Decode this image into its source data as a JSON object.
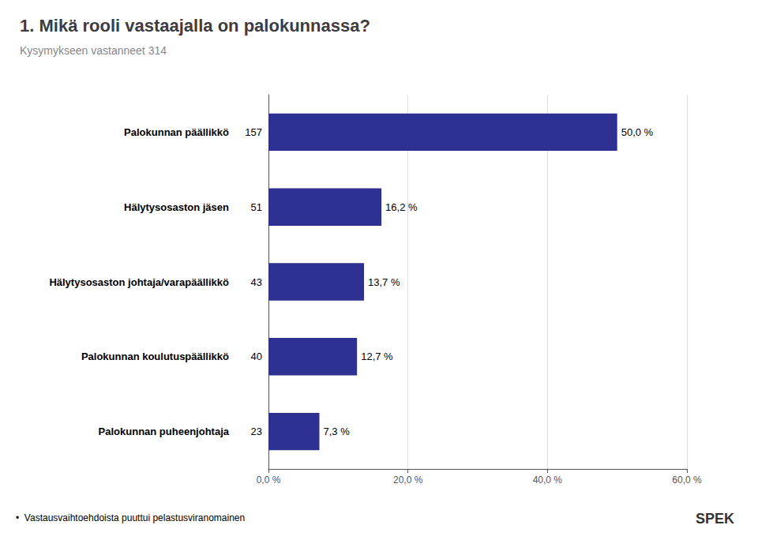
{
  "chart_data": {
    "type": "bar",
    "orientation": "horizontal",
    "title": "1. Mikä rooli vastaajalla on palokunnassa?",
    "subtitle": "Kysymykseen vastanneet 314",
    "footnote": "•  Vastausvaihtoehdoista puuttui pelastusviranomainen",
    "annotations": [
      "SPEK"
    ],
    "categories": [
      "Palokunnan päällikkö",
      "Hälytysosaston jäsen",
      "Hälytysosaston johtaja/varapäällikkö",
      "Palokunnan koulutuspäällikkö",
      "Palokunnan puheenjohtaja"
    ],
    "counts": [
      157,
      51,
      43,
      40,
      23
    ],
    "values": [
      50.0,
      16.2,
      13.7,
      12.7,
      7.3
    ],
    "value_labels": [
      "50,0 %",
      "16,2 %",
      "13,7 %",
      "12,7 %",
      "7,3 %"
    ],
    "data_labels": true,
    "color": "#2E3192",
    "xlim": [
      0,
      60
    ],
    "xticks": [
      {
        "value": 0,
        "label": "0,0 %"
      },
      {
        "value": 20,
        "label": "20,0 %"
      },
      {
        "value": 40,
        "label": "40,0 %"
      },
      {
        "value": 60,
        "label": "60,0 %"
      }
    ],
    "grid": true
  }
}
